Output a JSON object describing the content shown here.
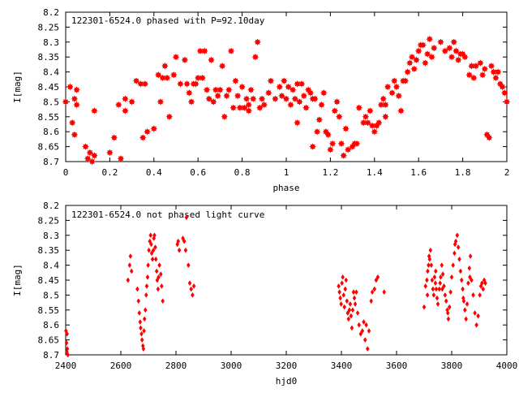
{
  "chart_data": [
    {
      "type": "scatter",
      "title": "122301-6524.0 phased with P=92.10day",
      "xlabel": "phase",
      "ylabel": "I[mag]",
      "xlim": [
        0,
        2
      ],
      "ylim": [
        8.7,
        8.2
      ],
      "y_inverted": true,
      "x_ticks": [
        "0",
        "0.2",
        "0.4",
        "0.6",
        "0.8",
        "1",
        "1.2",
        "1.4",
        "1.6",
        "1.8",
        "2"
      ],
      "y_ticks": [
        "8.2",
        "8.25",
        "8.3",
        "8.35",
        "8.4",
        "8.45",
        "8.5",
        "8.55",
        "8.6",
        "8.65",
        "8.7"
      ],
      "marker": "star",
      "color": "#ff0000",
      "grid": false,
      "points": [
        [
          0.0,
          8.5
        ],
        [
          0.02,
          8.45
        ],
        [
          0.03,
          8.57
        ],
        [
          0.04,
          8.49
        ],
        [
          0.05,
          8.46
        ],
        [
          0.04,
          8.61
        ],
        [
          0.09,
          8.65
        ],
        [
          0.1,
          8.69
        ],
        [
          0.11,
          8.67
        ],
        [
          0.12,
          8.7
        ],
        [
          0.13,
          8.68
        ],
        [
          0.13,
          8.53
        ],
        [
          0.2,
          8.67
        ],
        [
          0.22,
          8.62
        ],
        [
          0.24,
          8.51
        ],
        [
          0.25,
          8.69
        ],
        [
          0.27,
          8.49
        ],
        [
          0.27,
          8.53
        ],
        [
          0.3,
          8.5
        ],
        [
          0.32,
          8.43
        ],
        [
          0.34,
          8.44
        ],
        [
          0.35,
          8.62
        ],
        [
          0.36,
          8.44
        ],
        [
          0.37,
          8.6
        ],
        [
          0.4,
          8.59
        ],
        [
          0.42,
          8.41
        ],
        [
          0.43,
          8.5
        ],
        [
          0.45,
          8.38
        ],
        [
          0.46,
          8.42
        ],
        [
          0.47,
          8.55
        ],
        [
          0.49,
          8.41
        ],
        [
          0.5,
          8.35
        ],
        [
          0.52,
          8.44
        ],
        [
          0.54,
          8.36
        ],
        [
          0.55,
          8.44
        ],
        [
          0.56,
          8.47
        ],
        [
          0.57,
          8.5
        ],
        [
          0.59,
          8.44
        ],
        [
          0.6,
          8.42
        ],
        [
          0.61,
          8.33
        ],
        [
          0.62,
          8.42
        ],
        [
          0.63,
          8.33
        ],
        [
          0.64,
          8.46
        ],
        [
          0.65,
          8.49
        ],
        [
          0.66,
          8.36
        ],
        [
          0.67,
          8.5
        ],
        [
          0.68,
          8.46
        ],
        [
          0.69,
          8.48
        ],
        [
          0.7,
          8.46
        ],
        [
          0.71,
          8.38
        ],
        [
          0.72,
          8.55
        ],
        [
          0.73,
          8.48
        ],
        [
          0.74,
          8.46
        ],
        [
          0.75,
          8.33
        ],
        [
          0.76,
          8.52
        ],
        [
          0.77,
          8.43
        ],
        [
          0.78,
          8.48
        ],
        [
          0.79,
          8.52
        ],
        [
          0.8,
          8.45
        ],
        [
          0.81,
          8.52
        ],
        [
          0.82,
          8.49
        ],
        [
          0.83,
          8.53
        ],
        [
          0.84,
          8.46
        ],
        [
          0.85,
          8.49
        ],
        [
          0.86,
          8.35
        ],
        [
          0.87,
          8.3
        ],
        [
          0.88,
          8.52
        ],
        [
          0.89,
          8.49
        ],
        [
          0.9,
          8.51
        ],
        [
          0.92,
          8.47
        ],
        [
          0.93,
          8.43
        ],
        [
          0.95,
          8.49
        ],
        [
          0.97,
          8.45
        ],
        [
          0.98,
          8.48
        ],
        [
          0.99,
          8.43
        ],
        [
          1.0,
          8.49
        ],
        [
          1.01,
          8.45
        ],
        [
          1.02,
          8.51
        ],
        [
          1.03,
          8.46
        ],
        [
          1.04,
          8.49
        ],
        [
          1.05,
          8.57
        ],
        [
          1.06,
          8.5
        ],
        [
          1.07,
          8.44
        ],
        [
          1.08,
          8.48
        ],
        [
          1.09,
          8.52
        ],
        [
          1.1,
          8.46
        ],
        [
          1.11,
          8.47
        ],
        [
          1.12,
          8.65
        ],
        [
          1.13,
          8.49
        ],
        [
          1.14,
          8.6
        ],
        [
          1.15,
          8.56
        ],
        [
          1.16,
          8.51
        ],
        [
          1.17,
          8.47
        ],
        [
          1.18,
          8.6
        ],
        [
          1.19,
          8.61
        ],
        [
          1.2,
          8.66
        ],
        [
          1.21,
          8.64
        ],
        [
          1.22,
          8.53
        ],
        [
          1.23,
          8.5
        ],
        [
          1.24,
          8.55
        ],
        [
          1.25,
          8.64
        ],
        [
          1.26,
          8.68
        ],
        [
          1.27,
          8.59
        ],
        [
          1.28,
          8.66
        ],
        [
          1.3,
          8.65
        ],
        [
          1.31,
          8.64
        ],
        [
          1.32,
          8.64
        ],
        [
          1.33,
          8.52
        ],
        [
          1.35,
          8.57
        ],
        [
          1.36,
          8.55
        ],
        [
          1.37,
          8.57
        ],
        [
          1.38,
          8.53
        ],
        [
          1.39,
          8.58
        ],
        [
          1.4,
          8.6
        ],
        [
          1.41,
          8.58
        ],
        [
          1.42,
          8.57
        ],
        [
          1.43,
          8.51
        ],
        [
          1.44,
          8.49
        ],
        [
          1.45,
          8.55
        ],
        [
          1.46,
          8.45
        ],
        [
          1.48,
          8.47
        ],
        [
          1.49,
          8.43
        ],
        [
          1.5,
          8.45
        ],
        [
          1.51,
          8.48
        ],
        [
          1.52,
          8.53
        ],
        [
          1.53,
          8.43
        ],
        [
          1.54,
          8.43
        ],
        [
          1.55,
          8.4
        ],
        [
          1.56,
          8.37
        ],
        [
          1.57,
          8.35
        ],
        [
          1.58,
          8.39
        ],
        [
          1.59,
          8.36
        ],
        [
          1.6,
          8.33
        ],
        [
          1.61,
          8.31
        ],
        [
          1.62,
          8.31
        ],
        [
          1.63,
          8.37
        ],
        [
          1.64,
          8.34
        ],
        [
          1.65,
          8.29
        ],
        [
          1.66,
          8.35
        ],
        [
          1.67,
          8.32
        ],
        [
          1.7,
          8.3
        ],
        [
          1.72,
          8.33
        ],
        [
          1.74,
          8.32
        ],
        [
          1.75,
          8.35
        ],
        [
          1.76,
          8.3
        ],
        [
          1.77,
          8.33
        ],
        [
          1.78,
          8.36
        ],
        [
          1.79,
          8.34
        ],
        [
          1.8,
          8.34
        ],
        [
          1.81,
          8.35
        ],
        [
          1.83,
          8.41
        ],
        [
          1.84,
          8.38
        ],
        [
          1.85,
          8.42
        ],
        [
          1.86,
          8.38
        ],
        [
          1.88,
          8.37
        ],
        [
          1.89,
          8.41
        ],
        [
          1.9,
          8.39
        ],
        [
          1.91,
          8.61
        ],
        [
          1.92,
          8.62
        ],
        [
          1.93,
          8.38
        ],
        [
          1.94,
          8.4
        ],
        [
          1.95,
          8.42
        ],
        [
          1.96,
          8.4
        ],
        [
          1.97,
          8.44
        ],
        [
          1.98,
          8.45
        ],
        [
          1.99,
          8.47
        ],
        [
          2.0,
          8.5
        ],
        [
          1.45,
          8.51
        ],
        [
          1.12,
          8.49
        ],
        [
          1.05,
          8.44
        ],
        [
          0.83,
          8.51
        ],
        [
          0.58,
          8.44
        ],
        [
          0.44,
          8.42
        ],
        [
          0.05,
          8.51
        ]
      ]
    },
    {
      "type": "scatter",
      "title": "122301-6524.0 not phased light curve",
      "xlabel": "hjd0",
      "ylabel": "I[mag]",
      "xlim": [
        2400,
        4000
      ],
      "ylim": [
        8.7,
        8.2
      ],
      "y_inverted": true,
      "x_ticks": [
        "2400",
        "2600",
        "2800",
        "3000",
        "3200",
        "3400",
        "3600",
        "3800",
        "4000"
      ],
      "y_ticks": [
        "8.2",
        "8.25",
        "8.3",
        "8.35",
        "8.4",
        "8.45",
        "8.5",
        "8.55",
        "8.6",
        "8.65",
        "8.7"
      ],
      "marker": "diamond",
      "color": "#ff0000",
      "grid": false,
      "points": [
        [
          2401,
          8.62
        ],
        [
          2403,
          8.66
        ],
        [
          2404,
          8.69
        ],
        [
          2406,
          8.68
        ],
        [
          2408,
          8.7
        ],
        [
          2405,
          8.63
        ],
        [
          2626,
          8.45
        ],
        [
          2632,
          8.4
        ],
        [
          2635,
          8.37
        ],
        [
          2639,
          8.42
        ],
        [
          2660,
          8.48
        ],
        [
          2664,
          8.52
        ],
        [
          2667,
          8.56
        ],
        [
          2670,
          8.59
        ],
        [
          2672,
          8.61
        ],
        [
          2675,
          8.63
        ],
        [
          2677,
          8.65
        ],
        [
          2680,
          8.67
        ],
        [
          2682,
          8.68
        ],
        [
          2684,
          8.62
        ],
        [
          2686,
          8.58
        ],
        [
          2689,
          8.55
        ],
        [
          2692,
          8.5
        ],
        [
          2694,
          8.47
        ],
        [
          2697,
          8.44
        ],
        [
          2699,
          8.4
        ],
        [
          2702,
          8.35
        ],
        [
          2705,
          8.32
        ],
        [
          2708,
          8.3
        ],
        [
          2710,
          8.33
        ],
        [
          2712,
          8.36
        ],
        [
          2715,
          8.38
        ],
        [
          2718,
          8.35
        ],
        [
          2720,
          8.31
        ],
        [
          2722,
          8.3
        ],
        [
          2725,
          8.34
        ],
        [
          2727,
          8.38
        ],
        [
          2730,
          8.42
        ],
        [
          2732,
          8.45
        ],
        [
          2735,
          8.48
        ],
        [
          2737,
          8.44
        ],
        [
          2740,
          8.4
        ],
        [
          2745,
          8.43
        ],
        [
          2748,
          8.47
        ],
        [
          2752,
          8.52
        ],
        [
          2805,
          8.33
        ],
        [
          2808,
          8.32
        ],
        [
          2812,
          8.35
        ],
        [
          2825,
          8.31
        ],
        [
          2830,
          8.32
        ],
        [
          2835,
          8.35
        ],
        [
          2838,
          8.24
        ],
        [
          2845,
          8.4
        ],
        [
          2850,
          8.46
        ],
        [
          2855,
          8.48
        ],
        [
          2860,
          8.5
        ],
        [
          2865,
          8.47
        ],
        [
          3390,
          8.47
        ],
        [
          3393,
          8.49
        ],
        [
          3396,
          8.51
        ],
        [
          3399,
          8.53
        ],
        [
          3402,
          8.46
        ],
        [
          3405,
          8.44
        ],
        [
          3408,
          8.5
        ],
        [
          3411,
          8.54
        ],
        [
          3414,
          8.48
        ],
        [
          3417,
          8.45
        ],
        [
          3420,
          8.52
        ],
        [
          3423,
          8.56
        ],
        [
          3426,
          8.58
        ],
        [
          3429,
          8.55
        ],
        [
          3432,
          8.53
        ],
        [
          3435,
          8.57
        ],
        [
          3438,
          8.61
        ],
        [
          3441,
          8.55
        ],
        [
          3444,
          8.49
        ],
        [
          3447,
          8.51
        ],
        [
          3450,
          8.53
        ],
        [
          3454,
          8.49
        ],
        [
          3459,
          8.56
        ],
        [
          3464,
          8.6
        ],
        [
          3470,
          8.63
        ],
        [
          3476,
          8.62
        ],
        [
          3481,
          8.59
        ],
        [
          3486,
          8.65
        ],
        [
          3490,
          8.6
        ],
        [
          3495,
          8.68
        ],
        [
          3500,
          8.62
        ],
        [
          3508,
          8.52
        ],
        [
          3512,
          8.49
        ],
        [
          3520,
          8.48
        ],
        [
          3526,
          8.45
        ],
        [
          3532,
          8.44
        ],
        [
          3555,
          8.49
        ],
        [
          3700,
          8.54
        ],
        [
          3705,
          8.47
        ],
        [
          3710,
          8.45
        ],
        [
          3713,
          8.42
        ],
        [
          3716,
          8.4
        ],
        [
          3718,
          8.37
        ],
        [
          3720,
          8.38
        ],
        [
          3723,
          8.35
        ],
        [
          3726,
          8.4
        ],
        [
          3729,
          8.45
        ],
        [
          3732,
          8.48
        ],
        [
          3735,
          8.5
        ],
        [
          3738,
          8.44
        ],
        [
          3741,
          8.46
        ],
        [
          3744,
          8.48
        ],
        [
          3747,
          8.51
        ],
        [
          3750,
          8.53
        ],
        [
          3755,
          8.48
        ],
        [
          3758,
          8.46
        ],
        [
          3760,
          8.44
        ],
        [
          3764,
          8.4
        ],
        [
          3768,
          8.43
        ],
        [
          3772,
          8.47
        ],
        [
          3776,
          8.5
        ],
        [
          3780,
          8.52
        ],
        [
          3784,
          8.55
        ],
        [
          3788,
          8.58
        ],
        [
          3792,
          8.54
        ],
        [
          3796,
          8.49
        ],
        [
          3800,
          8.44
        ],
        [
          3805,
          8.4
        ],
        [
          3810,
          8.36
        ],
        [
          3815,
          8.32
        ],
        [
          3820,
          8.3
        ],
        [
          3824,
          8.34
        ],
        [
          3828,
          8.38
        ],
        [
          3832,
          8.42
        ],
        [
          3836,
          8.45
        ],
        [
          3840,
          8.48
        ],
        [
          3844,
          8.52
        ],
        [
          3848,
          8.55
        ],
        [
          3852,
          8.58
        ],
        [
          3856,
          8.53
        ],
        [
          3860,
          8.46
        ],
        [
          3864,
          8.41
        ],
        [
          3868,
          8.37
        ],
        [
          3872,
          8.45
        ],
        [
          3878,
          8.5
        ],
        [
          3884,
          8.56
        ],
        [
          3890,
          8.6
        ],
        [
          3896,
          8.57
        ],
        [
          3902,
          8.5
        ],
        [
          3906,
          8.47
        ],
        [
          3910,
          8.46
        ],
        [
          3914,
          8.48
        ],
        [
          3918,
          8.45
        ],
        [
          3922,
          8.46
        ],
        [
          3712,
          8.5
        ],
        [
          3742,
          8.42
        ],
        [
          3766,
          8.48
        ],
        [
          3786,
          8.56
        ],
        [
          3812,
          8.33
        ],
        [
          3842,
          8.51
        ],
        [
          3866,
          8.44
        ]
      ]
    }
  ]
}
